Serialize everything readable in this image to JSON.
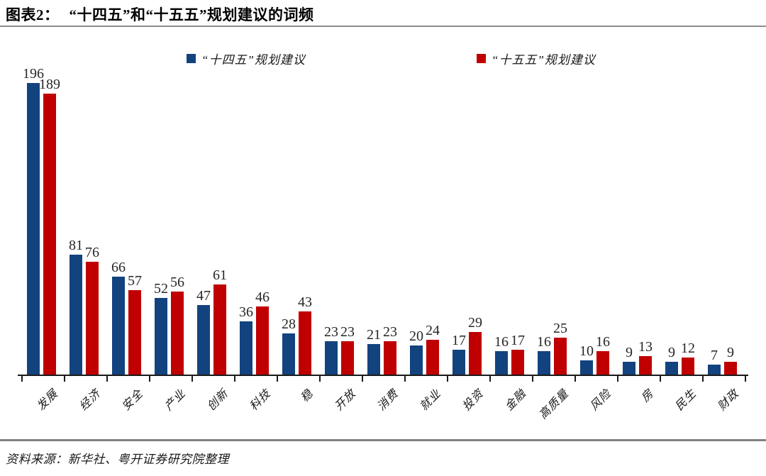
{
  "header": {
    "label": "图表2：",
    "title": "“十四五”和“十五五”规划建议的词频"
  },
  "chart_data": {
    "type": "bar",
    "title": "“十四五”和“十五五”规划建议的词频",
    "categories": [
      "发展",
      "经济",
      "安全",
      "产业",
      "创新",
      "科技",
      "稳",
      "开放",
      "消费",
      "就业",
      "投资",
      "金融",
      "高质量",
      "风险",
      "房",
      "民生",
      "财政"
    ],
    "series": [
      {
        "name": "“十四五”规划建议",
        "color": "#12437F",
        "values": [
          196,
          81,
          66,
          52,
          47,
          36,
          28,
          23,
          21,
          20,
          17,
          16,
          16,
          10,
          9,
          9,
          7
        ]
      },
      {
        "name": "“十五五”规划建议",
        "color": "#C00000",
        "values": [
          189,
          76,
          57,
          56,
          61,
          46,
          43,
          23,
          23,
          24,
          29,
          17,
          25,
          16,
          13,
          12,
          9
        ]
      }
    ],
    "ylim": [
      0,
      200
    ],
    "grid": false,
    "legend_position": "top",
    "value_labels": true
  },
  "source": "资料来源：新华社、粤开证券研究院整理"
}
